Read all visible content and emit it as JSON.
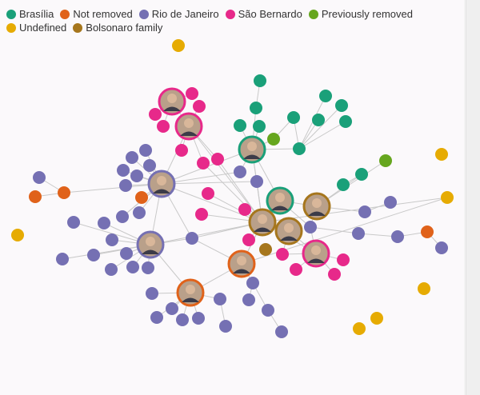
{
  "chart_data": {
    "type": "network",
    "groups": [
      {
        "id": "brasilia",
        "label": "Brasília",
        "color": "#1aa079"
      },
      {
        "id": "not_removed",
        "label": "Not removed",
        "color": "#e0621a"
      },
      {
        "id": "rio",
        "label": "Rio de Janeiro",
        "color": "#7570b3"
      },
      {
        "id": "sao_bernardo",
        "label": "São Bernardo",
        "color": "#e7298a"
      },
      {
        "id": "prev_removed",
        "label": "Previously removed",
        "color": "#66a61e"
      },
      {
        "id": "undefined",
        "label": "Undefined",
        "color": "#e6ab02"
      },
      {
        "id": "family",
        "label": "Bolsonaro family",
        "color": "#a6761d"
      }
    ]
  }
}
